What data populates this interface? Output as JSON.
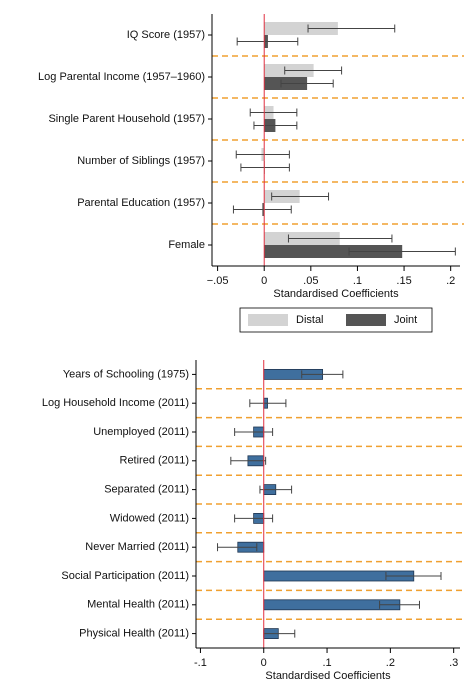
{
  "chart_data": [
    {
      "type": "hbar-ci",
      "categories": [
        "IQ Score (1957)",
        "Log Parental Income (1957–1960)",
        "Single Parent Household (1957)",
        "Number of Siblings (1957)",
        "Parental Education (1957)",
        "Female"
      ],
      "series": [
        {
          "name": "Distal",
          "color": "#d3d3d3",
          "values": [
            0.079,
            0.053,
            0.01,
            -0.003,
            0.038,
            0.081
          ],
          "ci_low": [
            0.047,
            0.022,
            -0.015,
            -0.03,
            0.008,
            0.026
          ],
          "ci_high": [
            0.14,
            0.083,
            0.035,
            0.027,
            0.069,
            0.137
          ]
        },
        {
          "name": "Joint",
          "color": "#555555",
          "values": [
            0.004,
            0.046,
            0.012,
            0.0,
            -0.002,
            0.148
          ],
          "ci_low": [
            -0.029,
            0.018,
            -0.011,
            -0.025,
            -0.033,
            0.091
          ],
          "ci_high": [
            0.036,
            0.074,
            0.035,
            0.027,
            0.029,
            0.205
          ]
        }
      ],
      "x_label": "Standardised Coefficients",
      "xlim": [
        -0.056,
        0.21
      ],
      "xticks": [
        {
          "value": -0.05,
          "label": "−.05"
        },
        0,
        {
          "value": 0.05,
          "label": ".05"
        },
        {
          "value": 0.1,
          "label": ".1"
        },
        {
          "value": 0.15,
          "label": ".15"
        },
        {
          "value": 0.2,
          "label": ".2"
        }
      ],
      "legend": "bottom"
    },
    {
      "type": "hbar-ci",
      "categories": [
        "Years of Schooling (1975)",
        "Log Household Income (2011)",
        "Unemployed (2011)",
        "Retired (2011)",
        "Separated (2011)",
        "Widowed (2011)",
        "Never Married (2011)",
        "Social Participation (2011)",
        "Mental Health (2011)",
        "Physical Health (2011)"
      ],
      "series": [
        {
          "color": "#3f6f9e",
          "values": [
            0.093,
            0.006,
            -0.016,
            -0.025,
            0.019,
            -0.016,
            -0.041,
            0.237,
            0.215,
            0.023
          ],
          "ci_low": [
            0.06,
            -0.022,
            -0.046,
            -0.052,
            -0.006,
            -0.046,
            -0.073,
            0.193,
            0.183,
            0.0
          ],
          "ci_high": [
            0.125,
            0.035,
            0.014,
            0.003,
            0.044,
            0.014,
            -0.011,
            0.28,
            0.246,
            0.049
          ]
        }
      ],
      "x_label": "Standardised Coefficients",
      "xlim": [
        -0.107,
        0.31
      ],
      "xticks": [
        {
          "value": -0.1,
          "label": "-.1"
        },
        0,
        {
          "value": 0.1,
          "label": ".1"
        },
        {
          "value": 0.2,
          "label": ".2"
        },
        {
          "value": 0.3,
          "label": ".3"
        }
      ]
    }
  ]
}
